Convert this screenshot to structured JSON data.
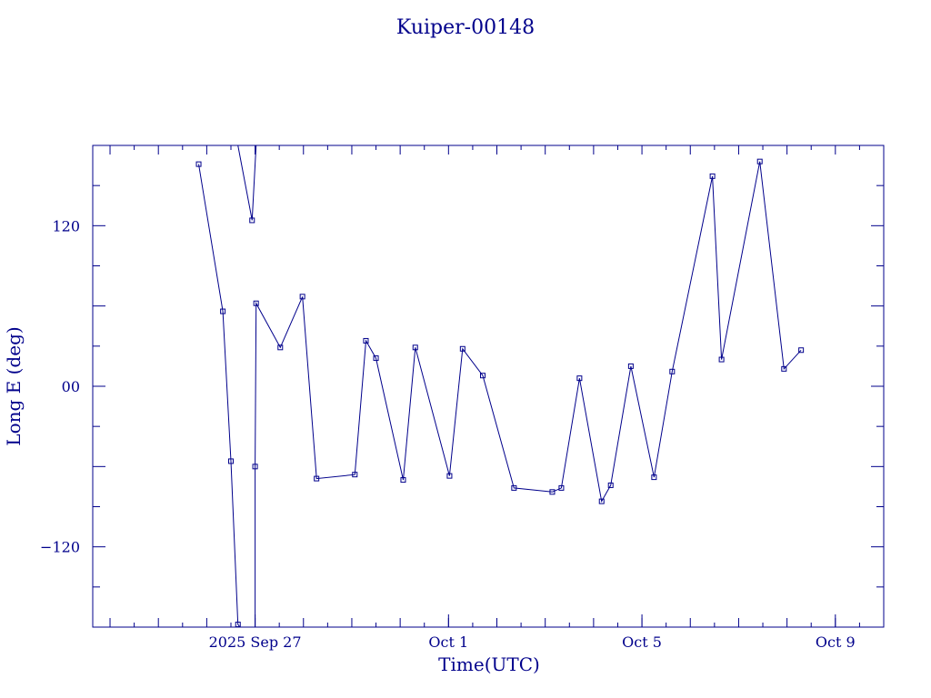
{
  "chart_data": {
    "type": "line",
    "title": "Kuiper-00148",
    "xlabel": "Time(UTC)",
    "ylabel": "Long E (deg)",
    "x_tick_labels": [
      {
        "date": "2025-09-27",
        "label": "2025 Sep 27"
      },
      {
        "date": "2025-10-01",
        "label": "Oct  1"
      },
      {
        "date": "2025-10-05",
        "label": "Oct  5"
      },
      {
        "date": "2025-10-09",
        "label": "Oct  9"
      }
    ],
    "y_tick_labels": [
      {
        "value": 120,
        "label": "120"
      },
      {
        "value": 0,
        "label": "00"
      },
      {
        "value": -120,
        "label": "−120"
      }
    ],
    "xlim": [
      "2025-09-23T15:25",
      "2025-10-10T00:00"
    ],
    "ylim": [
      -180,
      180
    ],
    "grid": false,
    "color": "#00008b",
    "segments": [
      [
        {
          "t": "2025-09-25T20:00",
          "y": 166
        },
        {
          "t": "2025-09-26T08:00",
          "y": 56
        },
        {
          "t": "2025-09-26T12:00",
          "y": -56
        },
        {
          "t": "2025-09-26T15:30",
          "y": -178
        },
        {
          "t": "2025-09-26T16:30",
          "y": -180
        }
      ],
      [
        {
          "t": "2025-09-26T15:30",
          "y": 180
        },
        {
          "t": "2025-09-26T22:30",
          "y": 124
        },
        {
          "t": "2025-09-27T00:30",
          "y": 180
        }
      ],
      [
        {
          "t": "2025-09-27T00:00",
          "y": -180
        },
        {
          "t": "2025-09-27T00:00",
          "y": -60
        },
        {
          "t": "2025-09-27T00:30",
          "y": 62
        },
        {
          "t": "2025-09-27T12:30",
          "y": 29
        },
        {
          "t": "2025-09-27T23:30",
          "y": 67
        },
        {
          "t": "2025-09-28T06:30",
          "y": -69
        },
        {
          "t": "2025-09-29T01:30",
          "y": -66
        },
        {
          "t": "2025-09-29T07:00",
          "y": 34
        },
        {
          "t": "2025-09-29T12:00",
          "y": 21
        },
        {
          "t": "2025-09-30T01:30",
          "y": -70
        },
        {
          "t": "2025-09-30T07:30",
          "y": 29
        },
        {
          "t": "2025-10-01T00:30",
          "y": -67
        },
        {
          "t": "2025-10-01T07:00",
          "y": 28
        },
        {
          "t": "2025-10-01T17:00",
          "y": 8
        },
        {
          "t": "2025-10-02T08:30",
          "y": -76
        },
        {
          "t": "2025-10-03T03:30",
          "y": -79
        },
        {
          "t": "2025-10-03T08:00",
          "y": -76
        },
        {
          "t": "2025-10-03T17:00",
          "y": 6
        },
        {
          "t": "2025-10-04T04:00",
          "y": -86
        },
        {
          "t": "2025-10-04T08:30",
          "y": -74
        },
        {
          "t": "2025-10-04T18:30",
          "y": 15
        },
        {
          "t": "2025-10-05T06:00",
          "y": -68
        },
        {
          "t": "2025-10-05T15:00",
          "y": 11
        },
        {
          "t": "2025-10-06T11:00",
          "y": 157
        },
        {
          "t": "2025-10-06T15:30",
          "y": 20
        },
        {
          "t": "2025-10-07T10:30",
          "y": 168
        },
        {
          "t": "2025-10-07T22:30",
          "y": 13
        },
        {
          "t": "2025-10-08T07:00",
          "y": 27
        }
      ]
    ]
  }
}
